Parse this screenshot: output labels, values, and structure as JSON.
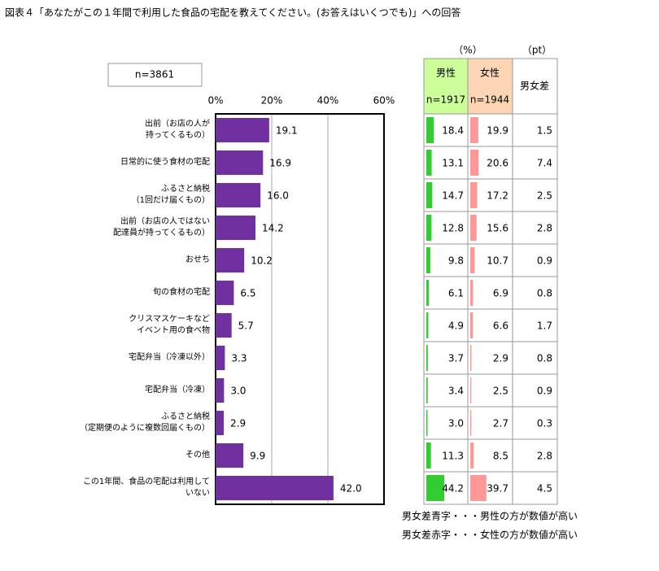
{
  "chart_data": {
    "type": "bar",
    "orientation": "horizontal",
    "title": "図表４「あなたがこの１年間で利用した食品の宅配を教えてください。(お答えはいくつでも)」への回答",
    "note": "n=3861",
    "categories": [
      "出前（お店の人が\n持ってくるもの）",
      "日常的に使う食材の宅配",
      "ふるさと納税\n（1回だけ届くもの）",
      "出前（お店の人ではない\n配達員が持ってくるもの）",
      "おせち",
      "旬の食材の宅配",
      "クリスマスケーキなど\nイベント用の食べ物",
      "宅配弁当（冷凍以外）",
      "宅配弁当（冷凍）",
      "ふるさと納税\n（定期便のように複数回届くもの）",
      "その他",
      "この1年間、食品の宅配は利用して\nいない"
    ],
    "values": [
      19.1,
      16.9,
      16.0,
      14.2,
      10.2,
      6.5,
      5.7,
      3.3,
      3.0,
      2.9,
      9.9,
      42.0
    ],
    "value_labels": [
      "19.1",
      "16.9",
      "16.0",
      "14.2",
      "10.2",
      "6.5",
      "5.7",
      "3.3",
      "3.0",
      "2.9",
      "9.9",
      "42.0"
    ],
    "color": "#7030a0",
    "xlim": [
      0,
      60
    ],
    "xticks": [
      {
        "value": 0,
        "label": "0%"
      },
      {
        "value": 20,
        "label": "20%"
      },
      {
        "value": 40,
        "label": "40%"
      },
      {
        "value": 60,
        "label": "60%"
      }
    ],
    "grid": true
  },
  "table": {
    "unit_pct": "（%）",
    "unit_pt": "（pt）",
    "male_header": "男性",
    "male_n": "n=1917",
    "male_bg": "#ccff99",
    "male_color": "#33cc33",
    "female_header": "女性",
    "female_n": "n=1944",
    "female_bg": "#fcd5b4",
    "female_color": "#ff9999",
    "diff_header": "男女差",
    "male_higher_color": "#1f7ac0",
    "female_higher_color": "#e00000",
    "bar_max": 100,
    "rows": [
      {
        "male": 18.4,
        "female": 19.9,
        "diff": 1.5
      },
      {
        "male": 13.1,
        "female": 20.6,
        "diff": 7.4
      },
      {
        "male": 14.7,
        "female": 17.2,
        "diff": 2.5
      },
      {
        "male": 12.8,
        "female": 15.6,
        "diff": 2.8
      },
      {
        "male": 9.8,
        "female": 10.7,
        "diff": 0.9
      },
      {
        "male": 6.1,
        "female": 6.9,
        "diff": 0.8
      },
      {
        "male": 4.9,
        "female": 6.6,
        "diff": 1.7
      },
      {
        "male": 3.7,
        "female": 2.9,
        "diff": 0.8
      },
      {
        "male": 3.4,
        "female": 2.5,
        "diff": 0.9
      },
      {
        "male": {
          "value": 3.0,
          "label": "3.0"
        },
        "female": 2.7,
        "diff": 0.3
      },
      {
        "male": 11.3,
        "female": 8.5,
        "diff": 2.8
      },
      {
        "male": 44.2,
        "female": 39.7,
        "diff": 4.5
      }
    ],
    "notes": [
      "男女差青字・・・男性の方が数値が高い",
      "男女差赤字・・・女性の方が数値が高い"
    ]
  }
}
